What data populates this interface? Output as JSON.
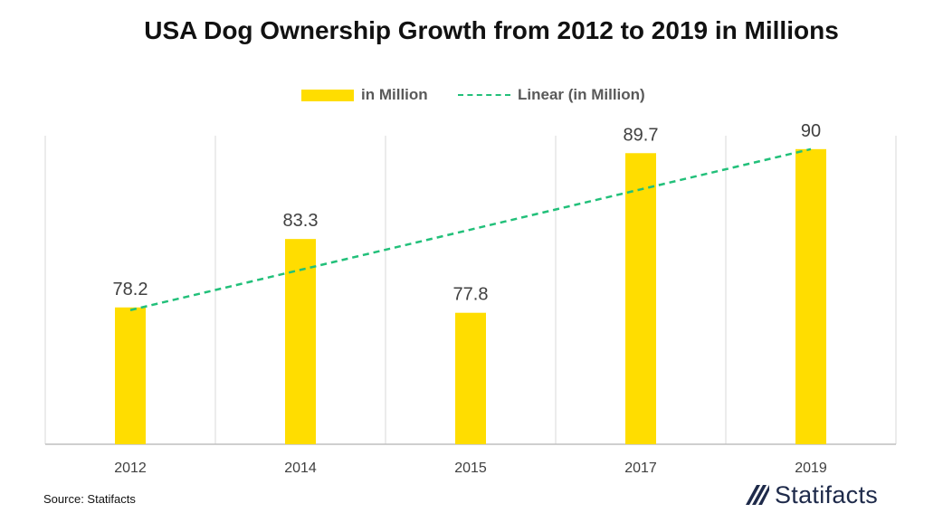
{
  "chart_data": {
    "type": "bar",
    "title": "USA Dog Ownership Growth from 2012 to 2019 in Millions",
    "categories": [
      "2012",
      "2014",
      "2015",
      "2017",
      "2019"
    ],
    "series": [
      {
        "name": "in Million",
        "values": [
          78.2,
          83.3,
          77.8,
          89.7,
          90
        ]
      },
      {
        "name": "Linear (in Million)",
        "type": "line",
        "style": "dashed",
        "values": [
          78.0,
          81.0,
          84.0,
          87.0,
          90.0
        ]
      }
    ],
    "data_labels": [
      "78.2",
      "83.3",
      "77.8",
      "89.7",
      "90"
    ],
    "ylim": [
      68,
      91
    ],
    "legend_position": "top",
    "xlabel": "",
    "ylabel": ""
  },
  "colors": {
    "bar": "#FFDD00",
    "trend": "#22C07A",
    "grid": "#D9D9D9"
  },
  "footer": {
    "source": "Source: Statifacts",
    "brand": "Statifacts"
  },
  "icons": {
    "brand_logo": "statifacts-logo-icon"
  }
}
